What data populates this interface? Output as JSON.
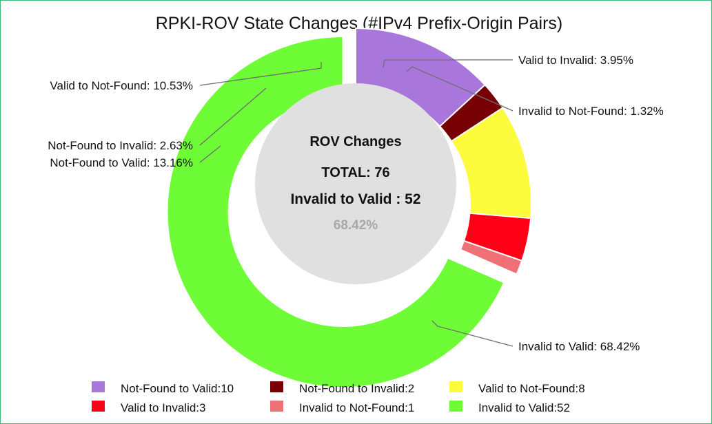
{
  "chart_data": {
    "type": "pie",
    "subtype": "donut",
    "title": "RPKI-ROV State Changes (#IPv4 Prefix-Origin Pairs)",
    "slices": [
      {
        "name": "Not-Found to Valid",
        "value": 10,
        "percent_label": "Not-Found to Valid: 13.16%",
        "legend_label": "Not-Found to Valid:10",
        "color": "#a977dc"
      },
      {
        "name": "Not-Found to Invalid",
        "value": 2,
        "percent_label": "Not-Found to Invalid: 2.63%",
        "legend_label": "Not-Found to Invalid:2",
        "color": "#770005"
      },
      {
        "name": "Valid to Not-Found",
        "value": 8,
        "percent_label": "Valid to Not-Found: 10.53%",
        "legend_label": "Valid to Not-Found:8",
        "color": "#fcfc3c"
      },
      {
        "name": "Valid to Invalid",
        "value": 3,
        "percent_label": "Valid to Invalid: 3.95%",
        "legend_label": "Valid to Invalid:3",
        "color": "#ff0017"
      },
      {
        "name": "Invalid to Not-Found",
        "value": 1,
        "percent_label": "Invalid to Not-Found: 1.32%",
        "legend_label": "Invalid to Not-Found:1",
        "color": "#f07175"
      },
      {
        "name": "Invalid to Valid",
        "value": 52,
        "percent_label": "Invalid to Valid: 68.42%",
        "legend_label": "Invalid to Valid:52",
        "color": "#6efc37"
      }
    ],
    "center": {
      "heading": "ROV Changes",
      "total": "TOTAL: 76",
      "highlight": "Invalid to Valid : 52",
      "highlight_percent": "68.42%",
      "fill": "#e0e0e0"
    },
    "legend_position": "bottom"
  }
}
